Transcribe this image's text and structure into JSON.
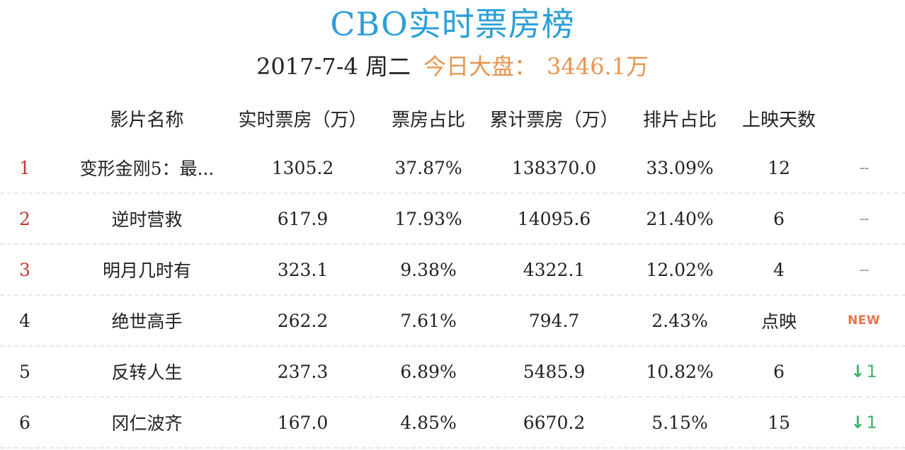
{
  "header": {
    "title": "CBO实时票房榜",
    "date": "2017-7-4 周二",
    "gross_label": "今日大盘：",
    "gross_value": "3446.1万"
  },
  "colors": {
    "title": "#2b9fd8",
    "gross": "#e8944f",
    "top_rank": "#c0392b",
    "new_badge": "#e8744f",
    "down_arrow": "#3bb56a"
  },
  "columns": {
    "name": "影片名称",
    "realtime": "实时票房（万）",
    "share": "票房占比",
    "cumulative": "累计票房（万）",
    "schedule": "排片占比",
    "days": "上映天数"
  },
  "rows": [
    {
      "rank": "1",
      "name": "变形金刚5：最...",
      "realtime": "1305.2",
      "share": "37.87%",
      "cumulative": "138370.0",
      "schedule": "33.09%",
      "days": "12",
      "trend": "--",
      "trend_type": "dash"
    },
    {
      "rank": "2",
      "name": "逆时营救",
      "realtime": "617.9",
      "share": "17.93%",
      "cumulative": "14095.6",
      "schedule": "21.40%",
      "days": "6",
      "trend": "--",
      "trend_type": "dash"
    },
    {
      "rank": "3",
      "name": "明月几时有",
      "realtime": "323.1",
      "share": "9.38%",
      "cumulative": "4322.1",
      "schedule": "12.02%",
      "days": "4",
      "trend": "--",
      "trend_type": "dash"
    },
    {
      "rank": "4",
      "name": "绝世高手",
      "realtime": "262.2",
      "share": "7.61%",
      "cumulative": "794.7",
      "schedule": "2.43%",
      "days": "点映",
      "trend": "NEW",
      "trend_type": "new"
    },
    {
      "rank": "5",
      "name": "反转人生",
      "realtime": "237.3",
      "share": "6.89%",
      "cumulative": "5485.9",
      "schedule": "10.82%",
      "days": "6",
      "trend": "1",
      "trend_type": "down"
    },
    {
      "rank": "6",
      "name": "冈仁波齐",
      "realtime": "167.0",
      "share": "4.85%",
      "cumulative": "6670.2",
      "schedule": "5.15%",
      "days": "15",
      "trend": "1",
      "trend_type": "down"
    }
  ]
}
